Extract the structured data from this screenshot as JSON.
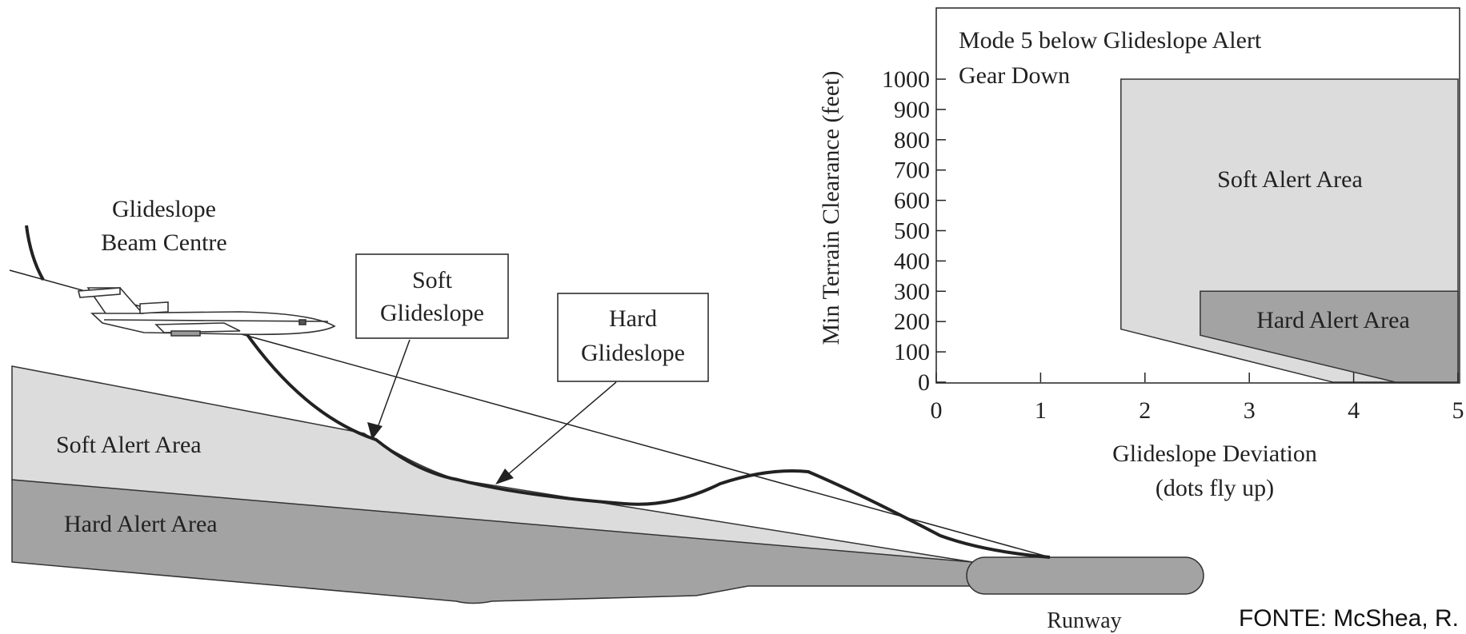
{
  "diagram": {
    "beam_label_line1": "Glideslope",
    "beam_label_line2": "Beam Centre",
    "soft_callout_line1": "Soft",
    "soft_callout_line2": "Glideslope",
    "hard_callout_line1": "Hard",
    "hard_callout_line2": "Glideslope",
    "soft_area_label": "Soft Alert Area",
    "hard_area_label": "Hard Alert Area",
    "runway_label": "Runway",
    "colors": {
      "soft": "#dcdcdc",
      "hard": "#a3a3a3"
    },
    "icons": [
      "airplane-icon"
    ]
  },
  "chart": {
    "title_line1": "Mode 5 below Glideslope Alert",
    "title_line2": "Gear Down",
    "ylabel": "Min Terrain Clearance (feet)",
    "xlabel_line1": "Glideslope Deviation",
    "xlabel_line2": "(dots fly up)",
    "soft_area_label": "Soft Alert Area",
    "hard_area_label": "Hard Alert Area"
  },
  "chart_data": {
    "type": "area",
    "xlim": [
      0,
      5
    ],
    "ylim": [
      0,
      1000
    ],
    "x_ticks": [
      "0",
      "1",
      "2",
      "3",
      "4",
      "5"
    ],
    "y_ticks": [
      "0",
      "100",
      "200",
      "300",
      "400",
      "500",
      "600",
      "700",
      "800",
      "900",
      "1000"
    ],
    "grid": false,
    "series": [
      {
        "name": "Soft Alert Area",
        "color": "#dcdcdc",
        "points": [
          [
            1.77,
            1000
          ],
          [
            5.0,
            1000
          ],
          [
            5.0,
            0
          ],
          [
            3.8,
            0
          ],
          [
            1.77,
            175
          ]
        ]
      },
      {
        "name": "Hard Alert Area",
        "color": "#a3a3a3",
        "points": [
          [
            2.53,
            300
          ],
          [
            5.0,
            300
          ],
          [
            5.0,
            0
          ],
          [
            4.4,
            0
          ],
          [
            2.53,
            155
          ]
        ]
      }
    ]
  },
  "source": "FONTE: McShea, R."
}
